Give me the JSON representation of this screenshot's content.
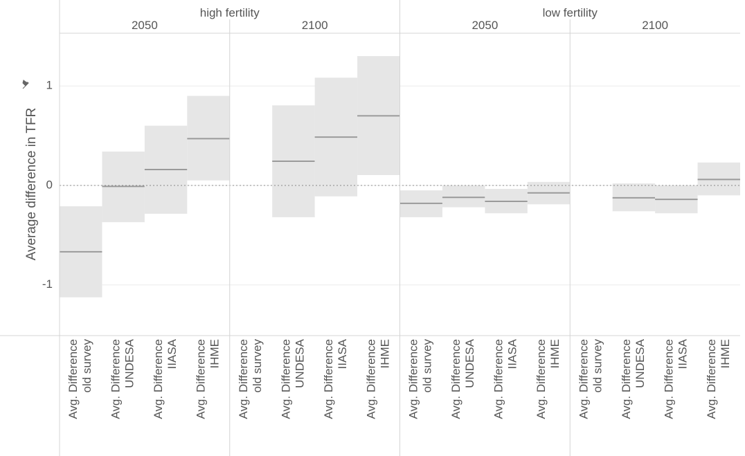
{
  "chart_data": {
    "type": "range",
    "y_label": "Average difference in TFR",
    "ylim": [
      -1.51,
      1.53
    ],
    "yticks": [
      -1,
      0,
      1
    ],
    "grid": true,
    "zero_line": true,
    "box_color": "#e6e6e6",
    "line_color": "#9a9a9a",
    "categories": [
      [
        "Avg. Difference",
        "old survey"
      ],
      [
        "Avg. Difference",
        "UNDESA"
      ],
      [
        "Avg. Difference",
        "IIASA"
      ],
      [
        "Avg. Difference",
        "IHME"
      ]
    ],
    "groups": [
      {
        "name": "high fertility",
        "panels": [
          {
            "year": "2050",
            "mean": [
              -0.667,
              -0.01,
              0.16,
              0.47
            ],
            "low": [
              -1.125,
              -0.37,
              -0.285,
              0.05
            ],
            "high": [
              -0.21,
              0.34,
              0.6,
              0.9
            ]
          },
          {
            "year": "2100",
            "mean": [
              null,
              0.243,
              0.486,
              0.7
            ],
            "low": [
              null,
              -0.32,
              -0.11,
              0.104
            ],
            "high": [
              null,
              0.805,
              1.083,
              1.3
            ]
          }
        ]
      },
      {
        "name": "low fertility",
        "panels": [
          {
            "year": "2050",
            "mean": [
              -0.18,
              -0.12,
              -0.16,
              -0.075
            ],
            "low": [
              -0.32,
              -0.22,
              -0.28,
              -0.19
            ],
            "high": [
              -0.05,
              0.0,
              -0.035,
              0.035
            ]
          },
          {
            "year": "2100",
            "mean": [
              null,
              -0.125,
              -0.14,
              0.06
            ],
            "low": [
              null,
              -0.26,
              -0.28,
              -0.1
            ],
            "high": [
              null,
              0.02,
              0.0,
              0.23
            ]
          }
        ]
      }
    ]
  }
}
